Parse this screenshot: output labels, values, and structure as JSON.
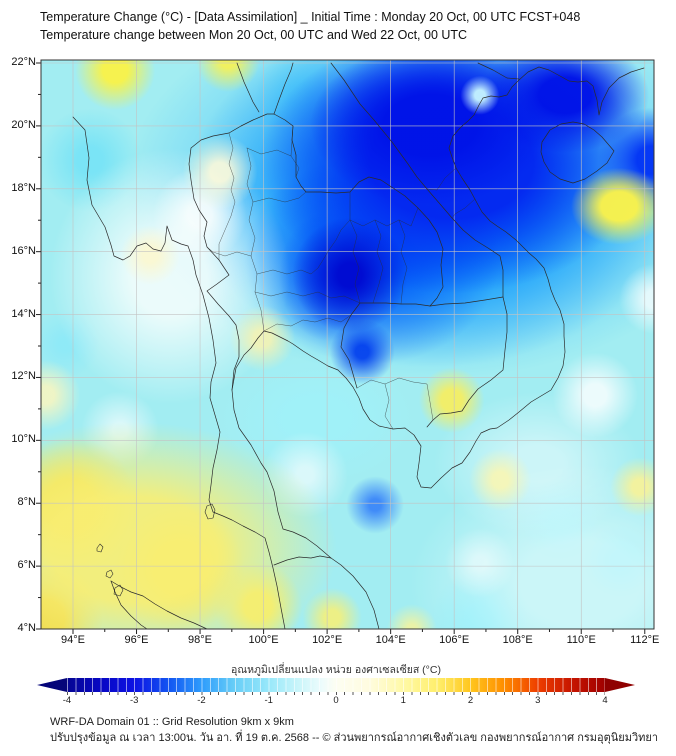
{
  "header": {
    "title_line1": "Temperature Change (°C) - [Data Assimilation] _ Initial Time : Monday 20 Oct, 00 UTC FCST+048",
    "title_line2": "Temperature change between Mon 20 Oct, 00 UTC and Wed 22 Oct, 00 UTC"
  },
  "map": {
    "lat_tick_labels": [
      "22°N",
      "20°N",
      "18°N",
      "16°N",
      "14°N",
      "12°N",
      "10°N",
      "8°N",
      "6°N",
      "4°N"
    ],
    "lon_tick_labels": [
      "94°E",
      "96°E",
      "98°E",
      "100°E",
      "102°E",
      "104°E",
      "106°E",
      "108°E",
      "110°E",
      "112°E"
    ],
    "lat_range_deg_n": [
      4,
      22
    ],
    "lon_range_deg_e": [
      94,
      112
    ]
  },
  "colorbar": {
    "label_thai": "อุณหภูมิเปลี่ยนแปลง หน่วย องศาเซลเซียส (°C)",
    "tick_labels": [
      "-4",
      "-3",
      "-2",
      "-1",
      "0",
      "1",
      "2",
      "3",
      "4"
    ],
    "min": -4,
    "max": 4,
    "gradient_stops": [
      {
        "value": -4,
        "color": "#050593"
      },
      {
        "value": -3,
        "color": "#0d12e3"
      },
      {
        "value": -2,
        "color": "#35aaff"
      },
      {
        "value": -1,
        "color": "#9ae9fa"
      },
      {
        "value": 0,
        "color": "#fdfff5"
      },
      {
        "value": 1,
        "color": "#fff9a8"
      },
      {
        "value": 2,
        "color": "#ffc81e"
      },
      {
        "value": 3,
        "color": "#ec3c00"
      },
      {
        "value": 4,
        "color": "#a00000"
      }
    ]
  },
  "footer": {
    "line1": "WRF-DA Domain 01 :: Grid Resolution 9km x 9km",
    "line2": "ปรับปรุงข้อมูล ณ เวลา 13:00น. วัน อา. ที่ 19 ต.ค. 2568 -- © ส่วนพยากรณ์อากาศเชิงตัวเลข กองพยากรณ์อากาศ กรมอุตุนิยมวิทยา"
  },
  "chart_data": {
    "type": "heatmap",
    "title": "Temperature change (°C) between Mon 20 Oct 00 UTC and Wed 22 Oct 00 UTC",
    "x_axis": {
      "label": "longitude",
      "ticks_deg_e": [
        94,
        96,
        98,
        100,
        102,
        104,
        106,
        108,
        110,
        112
      ]
    },
    "y_axis": {
      "label": "latitude",
      "ticks_deg_n": [
        22,
        20,
        18,
        16,
        14,
        12,
        10,
        8,
        6,
        4
      ]
    },
    "scale_range_c": [
      -4,
      4
    ],
    "regions": [
      {
        "area": "northern Vietnam / Laos / Hainan (102-112E, 17-22N)",
        "change_c": -3.5
      },
      {
        "area": "north and northeast Thailand (99-106E, 14-18N)",
        "change_c": -2.5
      },
      {
        "area": "central Thailand and Gulf of Thailand (99-104E, 10-14N)",
        "change_c": -1.0
      },
      {
        "area": "Andaman Sea and southern peninsula (93-100E, 4-10N)",
        "change_c": 0.8
      },
      {
        "area": "patch east of central Vietnam coast (~110.5E, 15.5N)",
        "change_c": 0.8
      },
      {
        "area": "Mekong delta vicinity (105-107E, 9-11N)",
        "change_c": 0.6
      },
      {
        "area": "remaining sea areas (southeast quadrant)",
        "change_c": -0.7
      }
    ],
    "legend_position": "bottom"
  }
}
